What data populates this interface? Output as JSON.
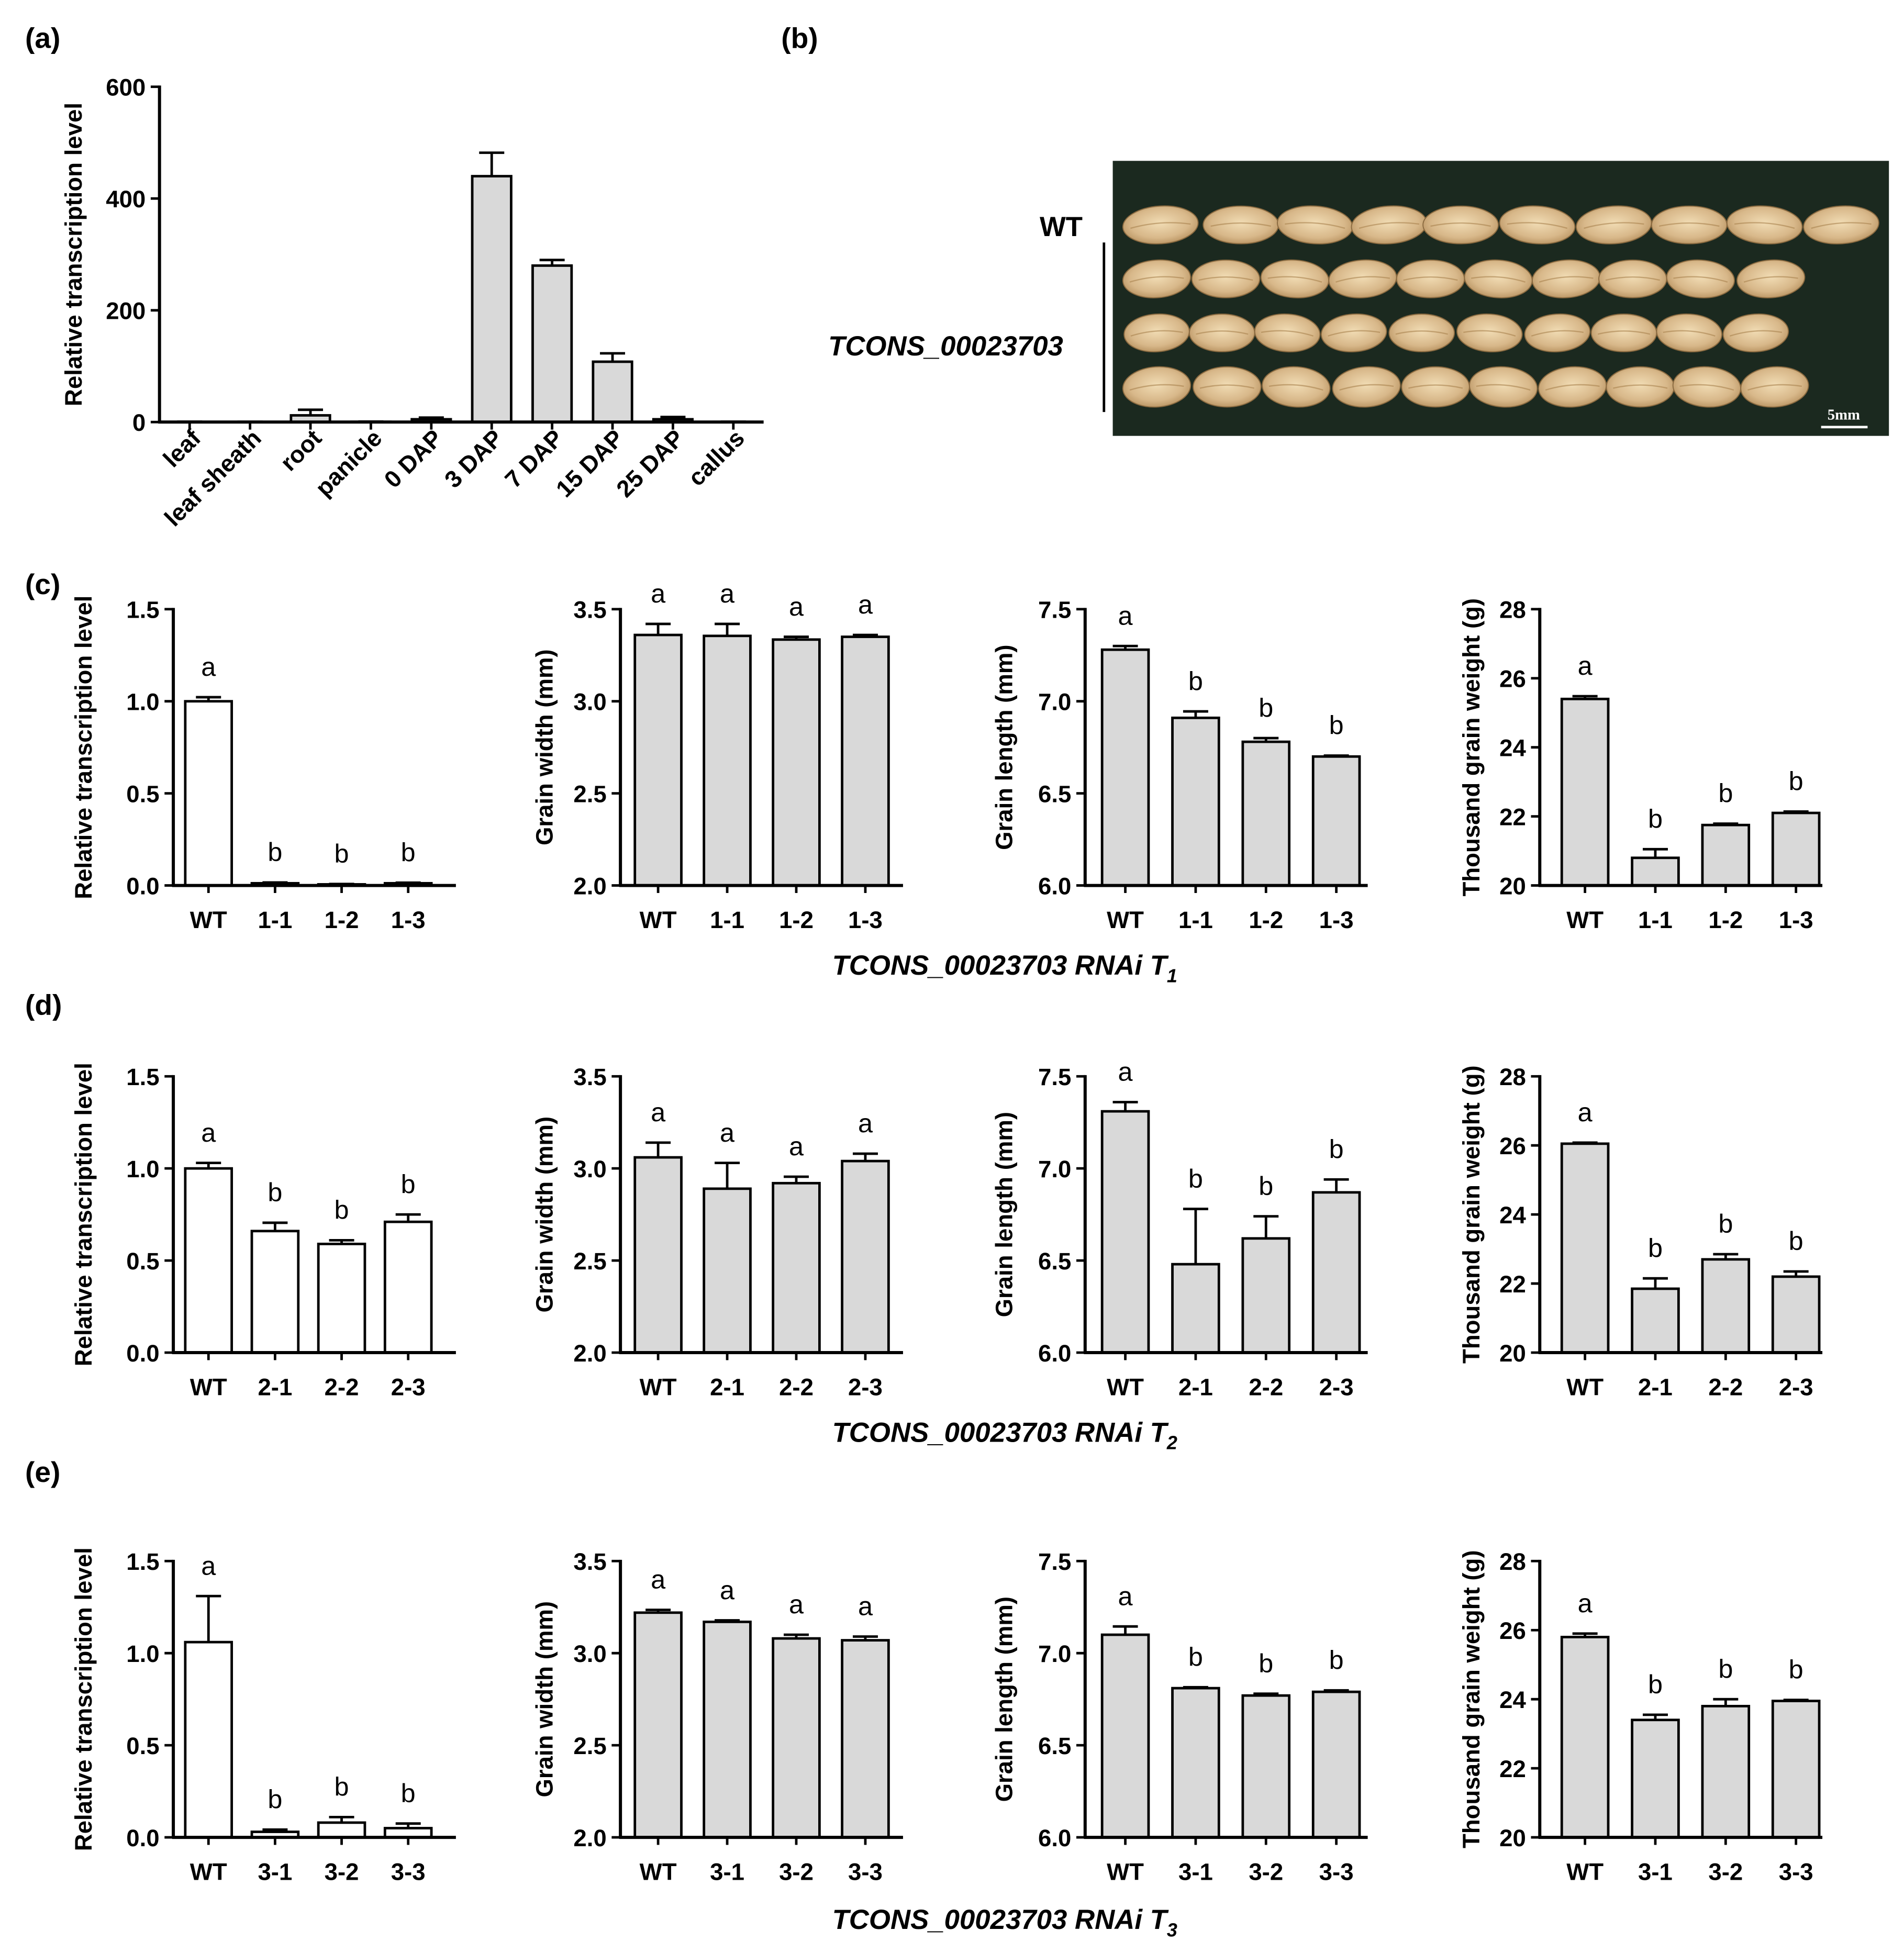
{
  "figure": {
    "panel_labels": {
      "a": "(a)",
      "b": "(b)",
      "c": "(c)",
      "d": "(d)",
      "e": "(e)"
    },
    "photo": {
      "wt_label": "WT",
      "line_label": "TCONS_00023703",
      "scale_bar": "5mm",
      "background": "#1b291f",
      "grain_color": "#d8b88a"
    },
    "group_xlabels": [
      {
        "main": "TCONS_00023703 RNAi T",
        "sub": "1"
      },
      {
        "main": "TCONS_00023703 RNAi T",
        "sub": "2"
      },
      {
        "main": "TCONS_00023703 RNAi T",
        "sub": "3"
      }
    ]
  },
  "chart_data": [
    {
      "type": "bar",
      "categories": [
        "leaf",
        "leaf sheath",
        "root",
        "panicle",
        "0 DAP",
        "3 DAP",
        "7 DAP",
        "15 DAP",
        "25 DAP",
        "callus"
      ],
      "values": [
        0.4,
        0.3,
        12,
        0.5,
        5,
        440,
        280,
        108,
        5,
        0.4
      ],
      "errors": [
        0.2,
        0.2,
        10,
        0.3,
        3,
        42,
        10,
        15,
        4,
        0.2
      ],
      "ylabel": "Relative transcription level",
      "ylim": [
        0,
        600
      ],
      "yticks": [
        0,
        200,
        400,
        600
      ],
      "ytick_labels": [
        "0",
        "200",
        "400",
        "600"
      ],
      "bar_color": "#d9d9d9"
    },
    {
      "type": "bar",
      "categories": [
        "WT",
        "1-1",
        "1-2",
        "1-3"
      ],
      "values": [
        1.0,
        0.012,
        0.006,
        0.012
      ],
      "errors": [
        0.022,
        0.004,
        0.002,
        0.003
      ],
      "letters": [
        "a",
        "b",
        "b",
        "b"
      ],
      "ylabel": "Relative transcription level",
      "ylim": [
        0,
        1.5
      ],
      "yticks": [
        0,
        0.5,
        1.0,
        1.5
      ],
      "ytick_labels": [
        "0.0",
        "0.5",
        "1.0",
        "1.5"
      ],
      "bar_color": "#ffffff"
    },
    {
      "type": "bar",
      "categories": [
        "WT",
        "1-1",
        "1-2",
        "1-3"
      ],
      "values": [
        3.36,
        3.355,
        3.335,
        3.35
      ],
      "errors": [
        0.06,
        0.065,
        0.015,
        0.01
      ],
      "letters": [
        "a",
        "a",
        "a",
        "a"
      ],
      "ylabel": "Grain width (mm)",
      "ylim": [
        2.0,
        3.5
      ],
      "yticks": [
        2.0,
        2.5,
        3.0,
        3.5
      ],
      "ytick_labels": [
        "2.0",
        "2.5",
        "3.0",
        "3.5"
      ],
      "bar_color": "#d9d9d9"
    },
    {
      "type": "bar",
      "categories": [
        "WT",
        "1-1",
        "1-2",
        "1-3"
      ],
      "values": [
        7.28,
        6.91,
        6.78,
        6.7
      ],
      "errors": [
        0.02,
        0.035,
        0.02,
        0.005
      ],
      "letters": [
        "a",
        "b",
        "b",
        "b"
      ],
      "ylabel": "Grain length (mm)",
      "ylim": [
        6.0,
        7.5
      ],
      "yticks": [
        6.0,
        6.5,
        7.0,
        7.5
      ],
      "ytick_labels": [
        "6.0",
        "6.5",
        "7.0",
        "7.5"
      ],
      "bar_color": "#d9d9d9"
    },
    {
      "type": "bar",
      "categories": [
        "WT",
        "1-1",
        "1-2",
        "1-3"
      ],
      "values": [
        25.4,
        20.8,
        21.75,
        22.1
      ],
      "errors": [
        0.08,
        0.25,
        0.04,
        0.04
      ],
      "letters": [
        "a",
        "b",
        "b",
        "b"
      ],
      "ylabel": "Thousand grain weight (g)",
      "ylim": [
        20,
        28
      ],
      "yticks": [
        20,
        22,
        24,
        26,
        28
      ],
      "ytick_labels": [
        "20",
        "22",
        "24",
        "26",
        "28"
      ],
      "bar_color": "#d9d9d9"
    },
    {
      "type": "bar",
      "categories": [
        "WT",
        "2-1",
        "2-2",
        "2-3"
      ],
      "values": [
        1.0,
        0.66,
        0.59,
        0.71
      ],
      "errors": [
        0.03,
        0.045,
        0.02,
        0.04
      ],
      "letters": [
        "a",
        "b",
        "b",
        "b"
      ],
      "ylabel": "Relative transcription level",
      "ylim": [
        0,
        1.5
      ],
      "yticks": [
        0,
        0.5,
        1.0,
        1.5
      ],
      "ytick_labels": [
        "0.0",
        "0.5",
        "1.0",
        "1.5"
      ],
      "bar_color": "#ffffff"
    },
    {
      "type": "bar",
      "categories": [
        "WT",
        "2-1",
        "2-2",
        "2-3"
      ],
      "values": [
        3.06,
        2.89,
        2.92,
        3.04
      ],
      "errors": [
        0.08,
        0.14,
        0.035,
        0.04
      ],
      "letters": [
        "a",
        "a",
        "a",
        "a"
      ],
      "ylabel": "Grain width (mm)",
      "ylim": [
        2.0,
        3.5
      ],
      "yticks": [
        2.0,
        2.5,
        3.0,
        3.5
      ],
      "ytick_labels": [
        "2.0",
        "2.5",
        "3.0",
        "3.5"
      ],
      "bar_color": "#d9d9d9"
    },
    {
      "type": "bar",
      "categories": [
        "WT",
        "2-1",
        "2-2",
        "2-3"
      ],
      "values": [
        7.31,
        6.48,
        6.62,
        6.87
      ],
      "errors": [
        0.05,
        0.3,
        0.12,
        0.07
      ],
      "letters": [
        "a",
        "b",
        "b",
        "b"
      ],
      "ylabel": "Grain length (mm)",
      "ylim": [
        6.0,
        7.5
      ],
      "yticks": [
        6.0,
        6.5,
        7.0,
        7.5
      ],
      "ytick_labels": [
        "6.0",
        "6.5",
        "7.0",
        "7.5"
      ],
      "bar_color": "#d9d9d9"
    },
    {
      "type": "bar",
      "categories": [
        "WT",
        "2-1",
        "2-2",
        "2-3"
      ],
      "values": [
        26.05,
        21.85,
        22.7,
        22.2
      ],
      "errors": [
        0.03,
        0.3,
        0.15,
        0.15
      ],
      "letters": [
        "a",
        "b",
        "b",
        "b"
      ],
      "ylabel": "Thousand grain weight (g)",
      "ylim": [
        20,
        28
      ],
      "yticks": [
        20,
        22,
        24,
        26,
        28
      ],
      "ytick_labels": [
        "20",
        "22",
        "24",
        "26",
        "28"
      ],
      "bar_color": "#d9d9d9"
    },
    {
      "type": "bar",
      "categories": [
        "WT",
        "3-1",
        "3-2",
        "3-3"
      ],
      "values": [
        1.06,
        0.03,
        0.08,
        0.05
      ],
      "errors": [
        0.25,
        0.012,
        0.03,
        0.025
      ],
      "letters": [
        "a",
        "b",
        "b",
        "b"
      ],
      "ylabel": "Relative transcription level",
      "ylim": [
        0,
        1.5
      ],
      "yticks": [
        0,
        0.5,
        1.0,
        1.5
      ],
      "ytick_labels": [
        "0.0",
        "0.5",
        "1.0",
        "1.5"
      ],
      "bar_color": "#ffffff"
    },
    {
      "type": "bar",
      "categories": [
        "WT",
        "3-1",
        "3-2",
        "3-3"
      ],
      "values": [
        3.22,
        3.17,
        3.08,
        3.07
      ],
      "errors": [
        0.015,
        0.008,
        0.02,
        0.02
      ],
      "letters": [
        "a",
        "a",
        "a",
        "a"
      ],
      "ylabel": "Grain width (mm)",
      "ylim": [
        2.0,
        3.5
      ],
      "yticks": [
        2.0,
        2.5,
        3.0,
        3.5
      ],
      "ytick_labels": [
        "2.0",
        "2.5",
        "3.0",
        "3.5"
      ],
      "bar_color": "#d9d9d9"
    },
    {
      "type": "bar",
      "categories": [
        "WT",
        "3-1",
        "3-2",
        "3-3"
      ],
      "values": [
        7.1,
        6.81,
        6.77,
        6.79
      ],
      "errors": [
        0.045,
        0.005,
        0.01,
        0.008
      ],
      "letters": [
        "a",
        "b",
        "b",
        "b"
      ],
      "ylabel": "Grain length (mm)",
      "ylim": [
        6.0,
        7.5
      ],
      "yticks": [
        6.0,
        6.5,
        7.0,
        7.5
      ],
      "ytick_labels": [
        "6.0",
        "6.5",
        "7.0",
        "7.5"
      ],
      "bar_color": "#d9d9d9"
    },
    {
      "type": "bar",
      "categories": [
        "WT",
        "3-1",
        "3-2",
        "3-3"
      ],
      "values": [
        25.8,
        23.4,
        23.8,
        23.95
      ],
      "errors": [
        0.1,
        0.15,
        0.2,
        0.03
      ],
      "letters": [
        "a",
        "b",
        "b",
        "b"
      ],
      "ylabel": "Thousand grain weight (g)",
      "ylim": [
        20,
        28
      ],
      "yticks": [
        20,
        22,
        24,
        26,
        28
      ],
      "ytick_labels": [
        "20",
        "22",
        "24",
        "26",
        "28"
      ],
      "bar_color": "#d9d9d9"
    }
  ]
}
